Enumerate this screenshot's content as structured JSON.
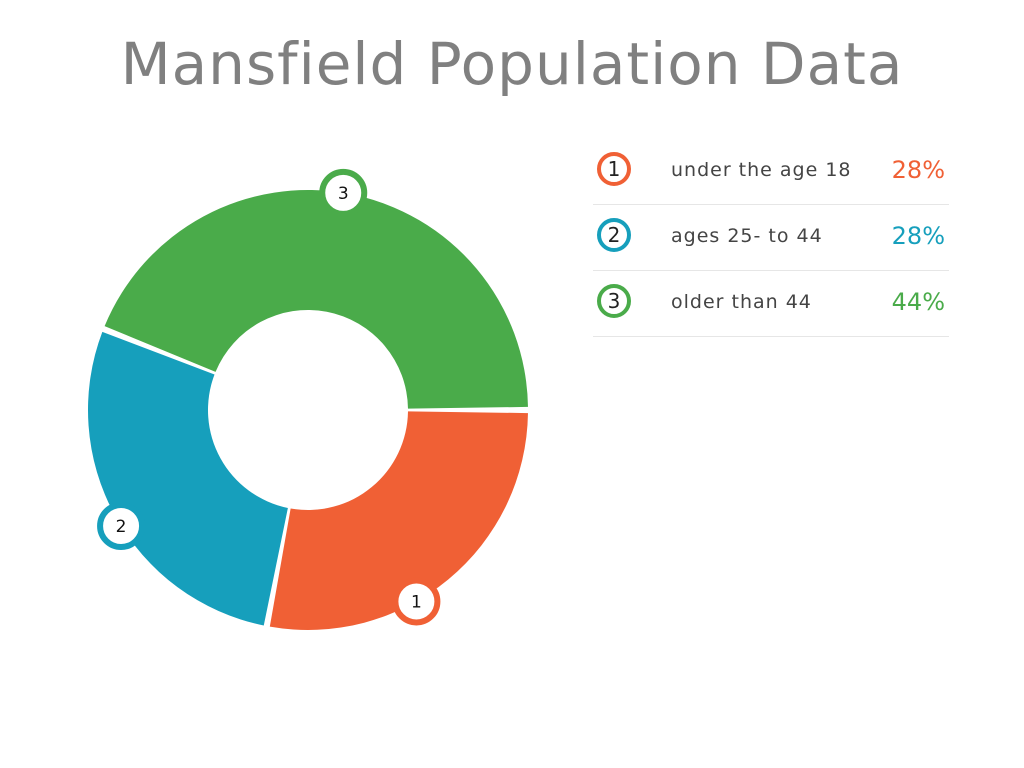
{
  "title": "Mansfield Population Data",
  "chart_data": {
    "type": "pie",
    "variant": "donut",
    "title": "Mansfield Population Data",
    "categories": [
      "under the age 18",
      "ages 25- to 44",
      "older than 44"
    ],
    "markers": [
      "1",
      "2",
      "3"
    ],
    "values": [
      28,
      28,
      44
    ],
    "value_labels": [
      "28%",
      "28%",
      "44%"
    ],
    "colors": [
      "#f06035",
      "#169fbc",
      "#4aab4a"
    ],
    "legend_placement": "right"
  }
}
